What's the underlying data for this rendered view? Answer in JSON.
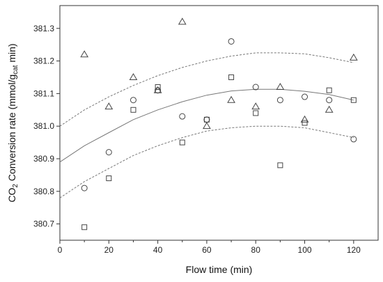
{
  "chart_data": {
    "type": "scatter",
    "xlabel": "Flow time (min)",
    "ylabel": {
      "prefix": "CO",
      "prefix_sub": "2",
      "main": " Conversion rate (mmol/g",
      "unit_sub": "cat",
      "suffix": " min)"
    },
    "xlim": [
      0,
      130
    ],
    "ylim": [
      380.65,
      381.37
    ],
    "x_ticks": [
      0,
      20,
      40,
      60,
      80,
      100,
      120
    ],
    "y_ticks": [
      380.7,
      380.8,
      380.9,
      381.0,
      381.1,
      381.2,
      381.3
    ],
    "y_tick_labels": [
      "380.7",
      "380.8",
      "380.9",
      "381.0",
      "381.1",
      "381.2",
      "381.3"
    ],
    "grid": false,
    "series": [
      {
        "marker": "square",
        "points": [
          [
            10,
            380.69
          ],
          [
            20,
            380.84
          ],
          [
            30,
            381.05
          ],
          [
            40,
            381.12
          ],
          [
            50,
            380.95
          ],
          [
            60,
            381.02
          ],
          [
            70,
            381.15
          ],
          [
            80,
            381.04
          ],
          [
            90,
            380.88
          ],
          [
            100,
            381.01
          ],
          [
            110,
            381.11
          ],
          [
            120,
            381.08
          ]
        ]
      },
      {
        "marker": "circle",
        "points": [
          [
            10,
            380.81
          ],
          [
            20,
            380.92
          ],
          [
            30,
            381.08
          ],
          [
            40,
            381.11
          ],
          [
            50,
            381.03
          ],
          [
            60,
            381.02
          ],
          [
            70,
            381.26
          ],
          [
            80,
            381.12
          ],
          [
            90,
            381.08
          ],
          [
            100,
            381.09
          ],
          [
            110,
            381.08
          ],
          [
            120,
            380.96
          ]
        ]
      },
      {
        "marker": "triangle",
        "points": [
          [
            10,
            381.22
          ],
          [
            20,
            381.06
          ],
          [
            30,
            381.15
          ],
          [
            40,
            381.11
          ],
          [
            50,
            381.32
          ],
          [
            60,
            381.0
          ],
          [
            70,
            381.08
          ],
          [
            80,
            381.06
          ],
          [
            90,
            381.12
          ],
          [
            100,
            381.02
          ],
          [
            110,
            381.05
          ],
          [
            120,
            381.21
          ]
        ]
      }
    ],
    "fit_curve": {
      "style": "solid",
      "points": [
        [
          0,
          380.89
        ],
        [
          10,
          380.94
        ],
        [
          20,
          380.98
        ],
        [
          30,
          381.02
        ],
        [
          40,
          381.05
        ],
        [
          50,
          381.075
        ],
        [
          60,
          381.095
        ],
        [
          70,
          381.108
        ],
        [
          80,
          381.113
        ],
        [
          90,
          381.113
        ],
        [
          100,
          381.107
        ],
        [
          110,
          381.097
        ],
        [
          120,
          381.08
        ]
      ]
    },
    "confidence_bands": [
      {
        "style": "dashed",
        "points": [
          [
            0,
            381.0
          ],
          [
            10,
            381.05
          ],
          [
            20,
            381.09
          ],
          [
            30,
            381.125
          ],
          [
            40,
            381.155
          ],
          [
            50,
            381.18
          ],
          [
            60,
            381.2
          ],
          [
            70,
            381.215
          ],
          [
            80,
            381.225
          ],
          [
            90,
            381.225
          ],
          [
            100,
            381.222
          ],
          [
            110,
            381.21
          ],
          [
            120,
            381.195
          ]
        ]
      },
      {
        "style": "dashed",
        "points": [
          [
            0,
            380.78
          ],
          [
            10,
            380.83
          ],
          [
            20,
            380.87
          ],
          [
            30,
            380.91
          ],
          [
            40,
            380.94
          ],
          [
            50,
            380.965
          ],
          [
            60,
            380.985
          ],
          [
            70,
            380.995
          ],
          [
            80,
            381.0
          ],
          [
            90,
            381.0
          ],
          [
            100,
            380.995
          ],
          [
            110,
            380.98
          ],
          [
            120,
            380.965
          ]
        ]
      }
    ]
  }
}
